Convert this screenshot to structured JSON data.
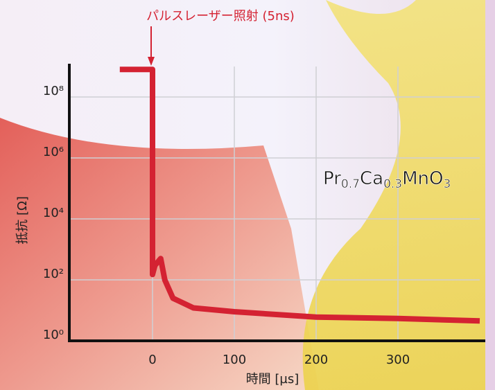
{
  "chart_data": {
    "type": "line",
    "title": "パルスレーザー照射 (5ns)",
    "x_label": "時間 [µs]",
    "y_label": "抵抗 [Ω]",
    "formula": [
      [
        "Pr",
        "0.7"
      ],
      [
        "Ca",
        "0.3"
      ],
      [
        "MnO",
        "3"
      ]
    ],
    "x": [
      -40,
      0,
      0,
      3,
      10,
      15,
      25,
      50,
      100,
      200,
      300,
      400
    ],
    "series": [
      {
        "color": "#d42232",
        "values": [
          800000000,
          800000000,
          150,
          300,
          500,
          100,
          25,
          12,
          9,
          6,
          5.4,
          4.5
        ]
      }
    ],
    "xlim": [
      -100,
      400
    ],
    "xticks": [
      0,
      100,
      200,
      300
    ],
    "ylim": [
      1,
      1000000000
    ],
    "log_y": true,
    "yticks": [
      {
        "value": 1,
        "label": "10⁰"
      },
      {
        "value": 100,
        "label": "10²"
      },
      {
        "value": 10000,
        "label": "10⁴"
      },
      {
        "value": 1000000,
        "label": "10⁶"
      },
      {
        "value": 100000000,
        "label": "10⁸"
      }
    ],
    "grid": true
  }
}
